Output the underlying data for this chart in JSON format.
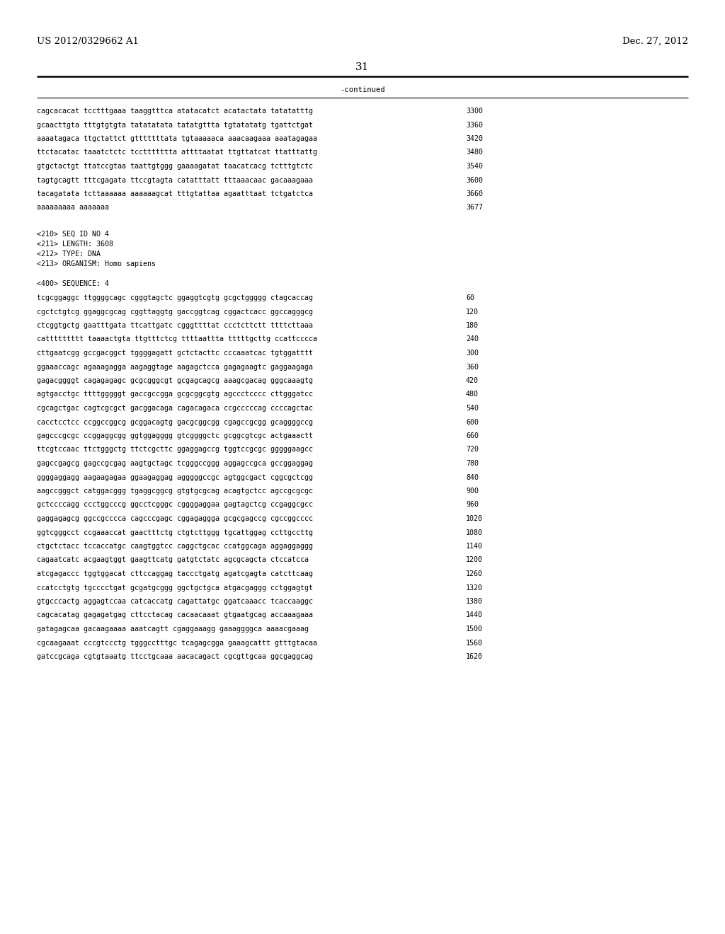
{
  "header_left": "US 2012/0329662 A1",
  "header_right": "Dec. 27, 2012",
  "page_number": "31",
  "continued_label": "-continued",
  "background_color": "#ffffff",
  "text_color": "#000000",
  "font_size_header": 9.5,
  "font_size_page": 11,
  "font_size_mono": 7.2,
  "sequence_lines_top": [
    [
      "cagcacacat tcctttgaaa taaggtttca atatacatct acatactata tatatatttg",
      "3300"
    ],
    [
      "gcaacttgta tttgtgtgta tatatatata tatatgttta tgtatatatg tgattctgat",
      "3360"
    ],
    [
      "aaaatagaca ttgctattct gtttttttata tgtaaaaaca aaacaagaaa aaatagagaa",
      "3420"
    ],
    [
      "ttctacatac taaatctctc tccttttttta attttaatat ttgttatcat ttatttattg",
      "3480"
    ],
    [
      "gtgctactgt ttatccgtaa taattgtggg gaaaagatat taacatcacg tctttgtctc",
      "3540"
    ],
    [
      "tagtgcagtt tttcgagata ttccgtagta catatttatt tttaaacaac gacaaagaaa",
      "3600"
    ],
    [
      "tacagatata tcttaaaaaa aaaaaagcat tttgtattaa agaatttaat tctgatctca",
      "3660"
    ],
    [
      "aaaaaaaaa aaaaaaa",
      "3677"
    ]
  ],
  "seq_id_block": [
    "<210> SEQ ID NO 4",
    "<211> LENGTH: 3608",
    "<212> TYPE: DNA",
    "<213> ORGANISM: Homo sapiens"
  ],
  "seq400_label": "<400> SEQUENCE: 4",
  "sequence_lines_bottom": [
    [
      "tcgcggaggc ttggggcagc cgggtagctc ggaggtcgtg gcgctggggg ctagcaccag",
      "60"
    ],
    [
      "cgctctgtcg ggaggcgcag cggttaggtg gaccggtcag cggactcacc ggccagggcg",
      "120"
    ],
    [
      "ctcggtgctg gaatttgata ttcattgatc cgggttttat ccctcttctt ttttcttaaa",
      "180"
    ],
    [
      "cattttttttt taaaactgta ttgtttctcg ttttaattta tttttgcttg ccattcccca",
      "240"
    ],
    [
      "cttgaatcgg gccgacggct tggggagatt gctctacttc cccaaatcac tgtggatttt",
      "300"
    ],
    [
      "ggaaaccagc agaaagagga aagaggtage aagagctcca gagagaagtc gaggaagaga",
      "360"
    ],
    [
      "gagacggggt cagagagagc gcgcgggcgt gcgagcagcg aaagcgacag gggcaaagtg",
      "420"
    ],
    [
      "agtgacctgc ttttgggggt gaccgccgga gcgcggcgtg agccctcccc cttgggatcc",
      "480"
    ],
    [
      "cgcagctgac cagtcgcgct gacggacaga cagacagaca ccgcccccag ccccagctac",
      "540"
    ],
    [
      "cacctcctcc ccggccggcg gcggacagtg gacgcggcgg cgagccgcgg gcaggggccg",
      "600"
    ],
    [
      "gagcccgcgc ccggaggcgg ggtggagggg gtcggggctc gcggcgtcgc actgaaactt",
      "660"
    ],
    [
      "ttcgtccaac ttctgggctg ttctcgcttc ggaggagccg tggtccgcgc gggggaagcc",
      "720"
    ],
    [
      "gagccgagcg gagccgcgag aagtgctagc tcgggccggg aggagccgca gccggaggag",
      "780"
    ],
    [
      "ggggaggagg aagaagagaa ggaagaggag agggggccgc agtggcgact cggcgctcgg",
      "840"
    ],
    [
      "aagccgggct catggacggg tgaggcggcg gtgtgcgcag acagtgctcc agccgcgcgc",
      "900"
    ],
    [
      "gctccccagg ccctggcccg ggcctcgggc cggggaggaa gagtagctcg ccgaggcgcc",
      "960"
    ],
    [
      "gaggagagcg ggccgcccca cagcccgagc cggagaggga gcgcgagccg cgccggcccc",
      "1020"
    ],
    [
      "ggtcgggcct ccgaaaccat gaactttctg ctgtcttggg tgcattggag ccttgccttg",
      "1080"
    ],
    [
      "ctgctctacc tccaccatgc caagtggtcc caggctgcac ccatggcaga aggaggaggg",
      "1140"
    ],
    [
      "cagaatcatc acgaagtggt gaagttcatg gatgtctatc agcgcagcta ctccatcca",
      "1200"
    ],
    [
      "atcgagaccc tggtggacat cttccaggag taccctgatg agatcgagta catcttcaag",
      "1260"
    ],
    [
      "ccatcctgtg tgcccctgat gcgatgcggg ggctgctgca atgacgaggg cctggagtgt",
      "1320"
    ],
    [
      "gtgcccactg aggagtccaa catcaccatg cagattatgc ggatcaaacc tcaccaaggc",
      "1380"
    ],
    [
      "cagcacatag gagagatgag cttcctacag cacaacaaat gtgaatgcag accaaagaaa",
      "1440"
    ],
    [
      "gatagagcaa gacaagaaaa aaatcagtt cgaggaaagg gaaaggggca aaaacgaaag",
      "1500"
    ],
    [
      "cgcaagaaat cccgtccctg tgggcctttgc tcagagcgga gaaagcattt gtttgtacaa",
      "1560"
    ],
    [
      "gatccgcaga cgtgtaaatg ttcctgcaaa aacacagact cgcgttgcaa ggcgaggcag",
      "1620"
    ]
  ]
}
